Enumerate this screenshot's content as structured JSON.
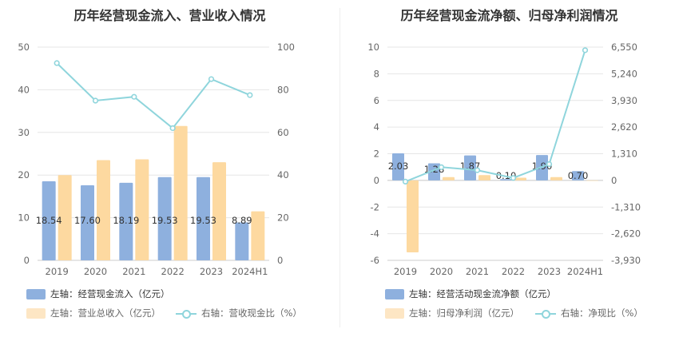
{
  "colors": {
    "bar_primary": "#8eb0de",
    "bar_secondary": "#fdd9a0",
    "line": "#8fd5dc",
    "grid": "#e6e6e6"
  },
  "chart_data": [
    {
      "type": "bar",
      "title": "历年经营现金流入、营业收入情况",
      "categories": [
        "2019",
        "2020",
        "2021",
        "2022",
        "2023",
        "2024H1"
      ],
      "y_left": {
        "ticks": [
          "0",
          "10",
          "20",
          "30",
          "40",
          "50"
        ],
        "range": [
          0,
          50
        ]
      },
      "y_right": {
        "ticks": [
          "0",
          "20",
          "40",
          "60",
          "80",
          "100"
        ],
        "range": [
          0,
          100
        ]
      },
      "series": [
        {
          "name": "左轴：经营现金流入（亿元）",
          "type": "bar",
          "axis": "left",
          "values": [
            18.54,
            17.6,
            18.19,
            19.53,
            19.53,
            8.89
          ],
          "labels": [
            "18.54",
            "17.60",
            "18.19",
            "19.53",
            "19.53",
            "8.89"
          ]
        },
        {
          "name": "左轴：营业总收入（亿元）",
          "type": "bar",
          "axis": "left",
          "values": [
            20.0,
            23.5,
            23.7,
            31.5,
            23.0,
            11.5
          ]
        },
        {
          "name": "右轴：营收现金比（%）",
          "type": "line",
          "axis": "right",
          "values": [
            92.5,
            74.9,
            76.7,
            62.0,
            85.0,
            77.5
          ]
        }
      ]
    },
    {
      "type": "bar",
      "title": "历年经营现金流净额、归母净利润情况",
      "categories": [
        "2019",
        "2020",
        "2021",
        "2022",
        "2023",
        "2024H1"
      ],
      "y_left": {
        "ticks": [
          "-6",
          "-4",
          "-2",
          "0",
          "2",
          "4",
          "6",
          "8",
          "10"
        ],
        "range": [
          -6,
          10
        ]
      },
      "y_right": {
        "ticks": [
          "-3,930",
          "-2,620",
          "-1,310",
          "0",
          "1,310",
          "2,620",
          "3,930",
          "5,240",
          "6,550"
        ],
        "range": [
          -3930,
          6550
        ]
      },
      "series": [
        {
          "name": "左轴：经营活动现金流净额（亿元）",
          "type": "bar",
          "axis": "left",
          "values": [
            2.03,
            1.28,
            1.87,
            0.1,
            1.9,
            0.7
          ],
          "labels": [
            "2.03",
            "1.28",
            "1.87",
            "0.10",
            "1.90",
            "0.70"
          ]
        },
        {
          "name": "左轴：归母净利润（亿元）",
          "type": "bar",
          "axis": "left",
          "values": [
            -5.4,
            0.25,
            0.4,
            0.2,
            0.25,
            0.0
          ]
        },
        {
          "name": "右轴：净现比（%）",
          "type": "line",
          "axis": "right",
          "values": [
            -60,
            650,
            500,
            120,
            800,
            6400
          ]
        }
      ]
    }
  ]
}
